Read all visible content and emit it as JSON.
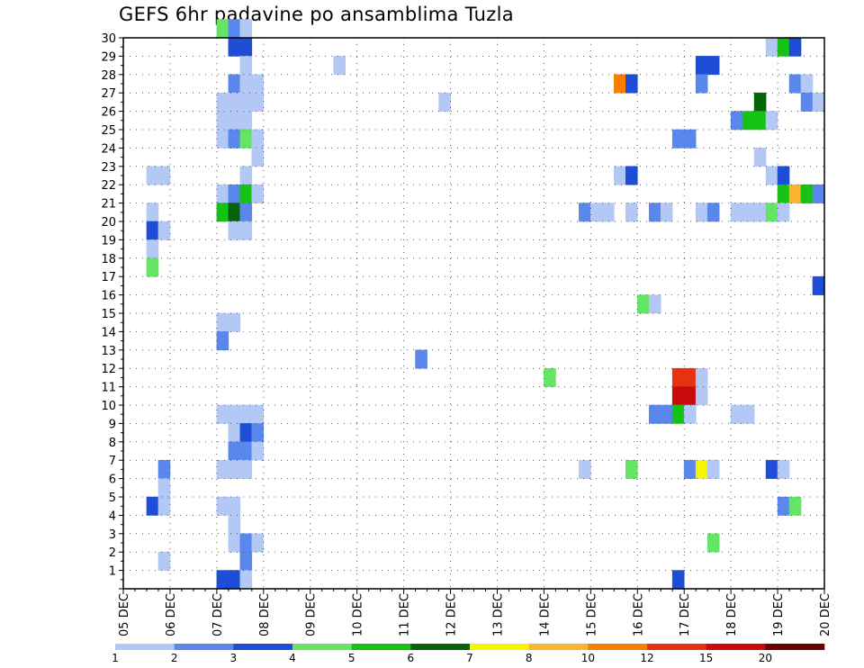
{
  "chart_data": {
    "type": "heatmap",
    "title": "GEFS 6hr padavine po ansamblima Tuzla",
    "xlabel": "",
    "ylabel": "",
    "x_ticks": [
      "05 DEC",
      "06 DEC",
      "07 DEC",
      "08 DEC",
      "09 DEC",
      "10 DEC",
      "11 DEC",
      "12 DEC",
      "13 DEC",
      "14 DEC",
      "15 DEC",
      "16 DEC",
      "17 DEC",
      "18 DEC",
      "19 DEC",
      "20 DEC"
    ],
    "x_range": [
      0,
      60
    ],
    "y_ticks": [
      "1",
      "2",
      "3",
      "4",
      "5",
      "6",
      "7",
      "8",
      "9",
      "10",
      "11",
      "12",
      "13",
      "14",
      "15",
      "16",
      "17",
      "18",
      "19",
      "20",
      "21",
      "22",
      "23",
      "24",
      "25",
      "26",
      "27",
      "28",
      "29",
      "30"
    ],
    "y_range": [
      0,
      30
    ],
    "grid": true,
    "legend_placement": "bottom",
    "colorbar": {
      "labels": [
        "1",
        "2",
        "3",
        "4",
        "5",
        "6",
        "7",
        "8",
        "10",
        "12",
        "15",
        "20"
      ],
      "colors": [
        "#b4c8f5",
        "#5a87eb",
        "#1e4ed7",
        "#64e664",
        "#14c314",
        "#05640a",
        "#f5f500",
        "#fab432",
        "#fa7d00",
        "#e6320f",
        "#c80a0a",
        "#6e0000"
      ]
    },
    "cells": [
      {
        "t": 8,
        "m": 30,
        "v": 4
      },
      {
        "t": 9,
        "m": 30,
        "v": 2
      },
      {
        "t": 10,
        "m": 30,
        "v": 1
      },
      {
        "t": 9,
        "m": 29,
        "v": 3
      },
      {
        "t": 10,
        "m": 29,
        "v": 3
      },
      {
        "t": 55,
        "m": 29,
        "v": 1
      },
      {
        "t": 56,
        "m": 29,
        "v": 5
      },
      {
        "t": 57,
        "m": 29,
        "v": 3
      },
      {
        "t": 10,
        "m": 28,
        "v": 1
      },
      {
        "t": 18,
        "m": 28,
        "v": 1
      },
      {
        "t": 49,
        "m": 28,
        "v": 3
      },
      {
        "t": 50,
        "m": 28,
        "v": 3
      },
      {
        "t": 9,
        "m": 27,
        "v": 2
      },
      {
        "t": 10,
        "m": 27,
        "v": 1
      },
      {
        "t": 11,
        "m": 27,
        "v": 1
      },
      {
        "t": 42,
        "m": 27,
        "v": 10
      },
      {
        "t": 43,
        "m": 27,
        "v": 3
      },
      {
        "t": 49,
        "m": 27,
        "v": 2
      },
      {
        "t": 57,
        "m": 27,
        "v": 2
      },
      {
        "t": 58,
        "m": 27,
        "v": 1
      },
      {
        "t": 8,
        "m": 26,
        "v": 1
      },
      {
        "t": 9,
        "m": 26,
        "v": 1
      },
      {
        "t": 10,
        "m": 26,
        "v": 1
      },
      {
        "t": 11,
        "m": 26,
        "v": 1
      },
      {
        "t": 27,
        "m": 26,
        "v": 1
      },
      {
        "t": 54,
        "m": 26,
        "v": 6
      },
      {
        "t": 58,
        "m": 26,
        "v": 2
      },
      {
        "t": 59,
        "m": 26,
        "v": 1
      },
      {
        "t": 8,
        "m": 25,
        "v": 1
      },
      {
        "t": 9,
        "m": 25,
        "v": 1
      },
      {
        "t": 10,
        "m": 25,
        "v": 1
      },
      {
        "t": 52,
        "m": 25,
        "v": 2
      },
      {
        "t": 53,
        "m": 25,
        "v": 5
      },
      {
        "t": 54,
        "m": 25,
        "v": 5
      },
      {
        "t": 55,
        "m": 25,
        "v": 1
      },
      {
        "t": 8,
        "m": 24,
        "v": 1
      },
      {
        "t": 9,
        "m": 24,
        "v": 2
      },
      {
        "t": 10,
        "m": 24,
        "v": 4
      },
      {
        "t": 11,
        "m": 24,
        "v": 1
      },
      {
        "t": 47,
        "m": 24,
        "v": 2
      },
      {
        "t": 48,
        "m": 24,
        "v": 2
      },
      {
        "t": 11,
        "m": 23,
        "v": 1
      },
      {
        "t": 54,
        "m": 23,
        "v": 1
      },
      {
        "t": 2,
        "m": 22,
        "v": 1
      },
      {
        "t": 3,
        "m": 22,
        "v": 1
      },
      {
        "t": 10,
        "m": 22,
        "v": 1
      },
      {
        "t": 42,
        "m": 22,
        "v": 1
      },
      {
        "t": 43,
        "m": 22,
        "v": 3
      },
      {
        "t": 55,
        "m": 22,
        "v": 1
      },
      {
        "t": 56,
        "m": 22,
        "v": 3
      },
      {
        "t": 8,
        "m": 21,
        "v": 1
      },
      {
        "t": 9,
        "m": 21,
        "v": 2
      },
      {
        "t": 10,
        "m": 21,
        "v": 5
      },
      {
        "t": 11,
        "m": 21,
        "v": 1
      },
      {
        "t": 56,
        "m": 21,
        "v": 5
      },
      {
        "t": 57,
        "m": 21,
        "v": 8
      },
      {
        "t": 58,
        "m": 21,
        "v": 5
      },
      {
        "t": 59,
        "m": 21,
        "v": 2
      },
      {
        "t": 2,
        "m": 20,
        "v": 1
      },
      {
        "t": 8,
        "m": 20,
        "v": 5
      },
      {
        "t": 9,
        "m": 20,
        "v": 6
      },
      {
        "t": 10,
        "m": 20,
        "v": 2
      },
      {
        "t": 39,
        "m": 20,
        "v": 2
      },
      {
        "t": 40,
        "m": 20,
        "v": 1
      },
      {
        "t": 41,
        "m": 20,
        "v": 1
      },
      {
        "t": 43,
        "m": 20,
        "v": 1
      },
      {
        "t": 45,
        "m": 20,
        "v": 2
      },
      {
        "t": 46,
        "m": 20,
        "v": 1
      },
      {
        "t": 49,
        "m": 20,
        "v": 1
      },
      {
        "t": 50,
        "m": 20,
        "v": 2
      },
      {
        "t": 52,
        "m": 20,
        "v": 1
      },
      {
        "t": 53,
        "m": 20,
        "v": 1
      },
      {
        "t": 54,
        "m": 20,
        "v": 1
      },
      {
        "t": 55,
        "m": 20,
        "v": 4
      },
      {
        "t": 56,
        "m": 20,
        "v": 1
      },
      {
        "t": 2,
        "m": 19,
        "v": 3
      },
      {
        "t": 3,
        "m": 19,
        "v": 1
      },
      {
        "t": 9,
        "m": 19,
        "v": 1
      },
      {
        "t": 10,
        "m": 19,
        "v": 1
      },
      {
        "t": 2,
        "m": 18,
        "v": 1
      },
      {
        "t": 2,
        "m": 17,
        "v": 4
      },
      {
        "t": 59,
        "m": 16,
        "v": 3
      },
      {
        "t": 44,
        "m": 15,
        "v": 4
      },
      {
        "t": 45,
        "m": 15,
        "v": 1
      },
      {
        "t": 8,
        "m": 14,
        "v": 1
      },
      {
        "t": 9,
        "m": 14,
        "v": 1
      },
      {
        "t": 8,
        "m": 13,
        "v": 2
      },
      {
        "t": 25,
        "m": 12,
        "v": 2
      },
      {
        "t": 36,
        "m": 11,
        "v": 4
      },
      {
        "t": 47,
        "m": 11,
        "v": 12
      },
      {
        "t": 48,
        "m": 11,
        "v": 12
      },
      {
        "t": 49,
        "m": 11,
        "v": 1
      },
      {
        "t": 47,
        "m": 10,
        "v": 15
      },
      {
        "t": 48,
        "m": 10,
        "v": 15
      },
      {
        "t": 49,
        "m": 10,
        "v": 1
      },
      {
        "t": 8,
        "m": 9,
        "v": 1
      },
      {
        "t": 9,
        "m": 9,
        "v": 1
      },
      {
        "t": 10,
        "m": 9,
        "v": 1
      },
      {
        "t": 11,
        "m": 9,
        "v": 1
      },
      {
        "t": 45,
        "m": 9,
        "v": 2
      },
      {
        "t": 46,
        "m": 9,
        "v": 2
      },
      {
        "t": 47,
        "m": 9,
        "v": 5
      },
      {
        "t": 48,
        "m": 9,
        "v": 1
      },
      {
        "t": 52,
        "m": 9,
        "v": 1
      },
      {
        "t": 53,
        "m": 9,
        "v": 1
      },
      {
        "t": 9,
        "m": 8,
        "v": 1
      },
      {
        "t": 10,
        "m": 8,
        "v": 3
      },
      {
        "t": 11,
        "m": 8,
        "v": 2
      },
      {
        "t": 9,
        "m": 7,
        "v": 2
      },
      {
        "t": 10,
        "m": 7,
        "v": 2
      },
      {
        "t": 11,
        "m": 7,
        "v": 1
      },
      {
        "t": 3,
        "m": 6,
        "v": 2
      },
      {
        "t": 8,
        "m": 6,
        "v": 1
      },
      {
        "t": 9,
        "m": 6,
        "v": 1
      },
      {
        "t": 10,
        "m": 6,
        "v": 1
      },
      {
        "t": 39,
        "m": 6,
        "v": 1
      },
      {
        "t": 43,
        "m": 6,
        "v": 4
      },
      {
        "t": 48,
        "m": 6,
        "v": 2
      },
      {
        "t": 49,
        "m": 6,
        "v": 7
      },
      {
        "t": 50,
        "m": 6,
        "v": 1
      },
      {
        "t": 55,
        "m": 6,
        "v": 3
      },
      {
        "t": 56,
        "m": 6,
        "v": 1
      },
      {
        "t": 3,
        "m": 5,
        "v": 1
      },
      {
        "t": 2,
        "m": 4,
        "v": 3
      },
      {
        "t": 3,
        "m": 4,
        "v": 1
      },
      {
        "t": 8,
        "m": 4,
        "v": 1
      },
      {
        "t": 9,
        "m": 4,
        "v": 1
      },
      {
        "t": 56,
        "m": 4,
        "v": 2
      },
      {
        "t": 57,
        "m": 4,
        "v": 4
      },
      {
        "t": 9,
        "m": 3,
        "v": 1
      },
      {
        "t": 9,
        "m": 2,
        "v": 1
      },
      {
        "t": 10,
        "m": 2,
        "v": 2
      },
      {
        "t": 11,
        "m": 2,
        "v": 1
      },
      {
        "t": 50,
        "m": 2,
        "v": 4
      },
      {
        "t": 3,
        "m": 1,
        "v": 1
      },
      {
        "t": 10,
        "m": 1,
        "v": 2
      },
      {
        "t": 8,
        "m": 0,
        "v": 3
      },
      {
        "t": 9,
        "m": 0,
        "v": 3
      },
      {
        "t": 10,
        "m": 0,
        "v": 1
      },
      {
        "t": 47,
        "m": 0,
        "v": 3
      }
    ]
  }
}
